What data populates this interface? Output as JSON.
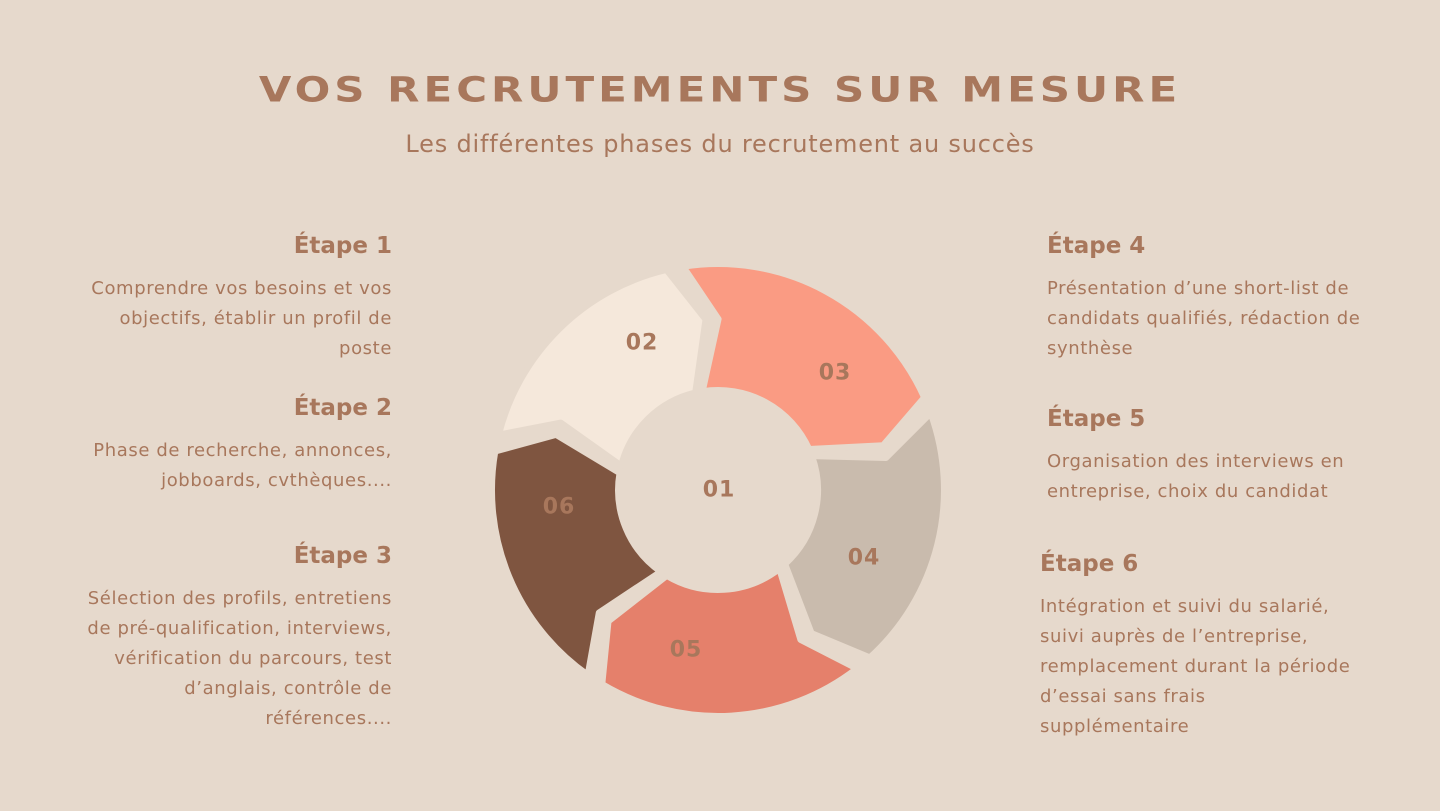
{
  "header": {
    "title": "VOS RECRUTEMENTS SUR MESURE",
    "subtitle": "Les différentes phases du recrutement au succès"
  },
  "steps": [
    {
      "title": "Étape 1",
      "text": "Comprendre vos besoins et vos objectifs,  établir un profil de poste"
    },
    {
      "title": "Étape 2",
      "text": "Phase de recherche, annonces, jobboards, cvthèques...."
    },
    {
      "title": "Étape 3",
      "text": "Sélection des profils, entretiens de pré-qualification, interviews, vérification du parcours, test d’anglais, contrôle de références...."
    },
    {
      "title": "Étape 4",
      "text": "Présentation d’une short-list de candidats qualifiés, rédaction de synthèse"
    },
    {
      "title": "Étape 5",
      "text": "Organisation des interviews en entreprise, choix du candidat"
    },
    {
      "title": "Étape 6",
      "text": "Intégration et suivi du salarié, suivi auprès de l’entreprise, remplacement durant la période d’essai sans frais supplémentaire"
    }
  ],
  "diagram": {
    "center_label": "01",
    "segments": [
      {
        "label": "02",
        "color": "#F5E8DB",
        "label_color": "#A8775C"
      },
      {
        "label": "03",
        "color": "#FA9B83",
        "label_color": "#A8775C"
      },
      {
        "label": "04",
        "color": "#C9BBAD",
        "label_color": "#A8775C"
      },
      {
        "label": "05",
        "color": "#E5806B",
        "label_color": "#A8775C"
      },
      {
        "label": "06",
        "color": "#7F5540",
        "label_color": "#A8775C"
      }
    ],
    "center_color": "#E6D9CC",
    "gap_color": "#E6D9CC"
  }
}
